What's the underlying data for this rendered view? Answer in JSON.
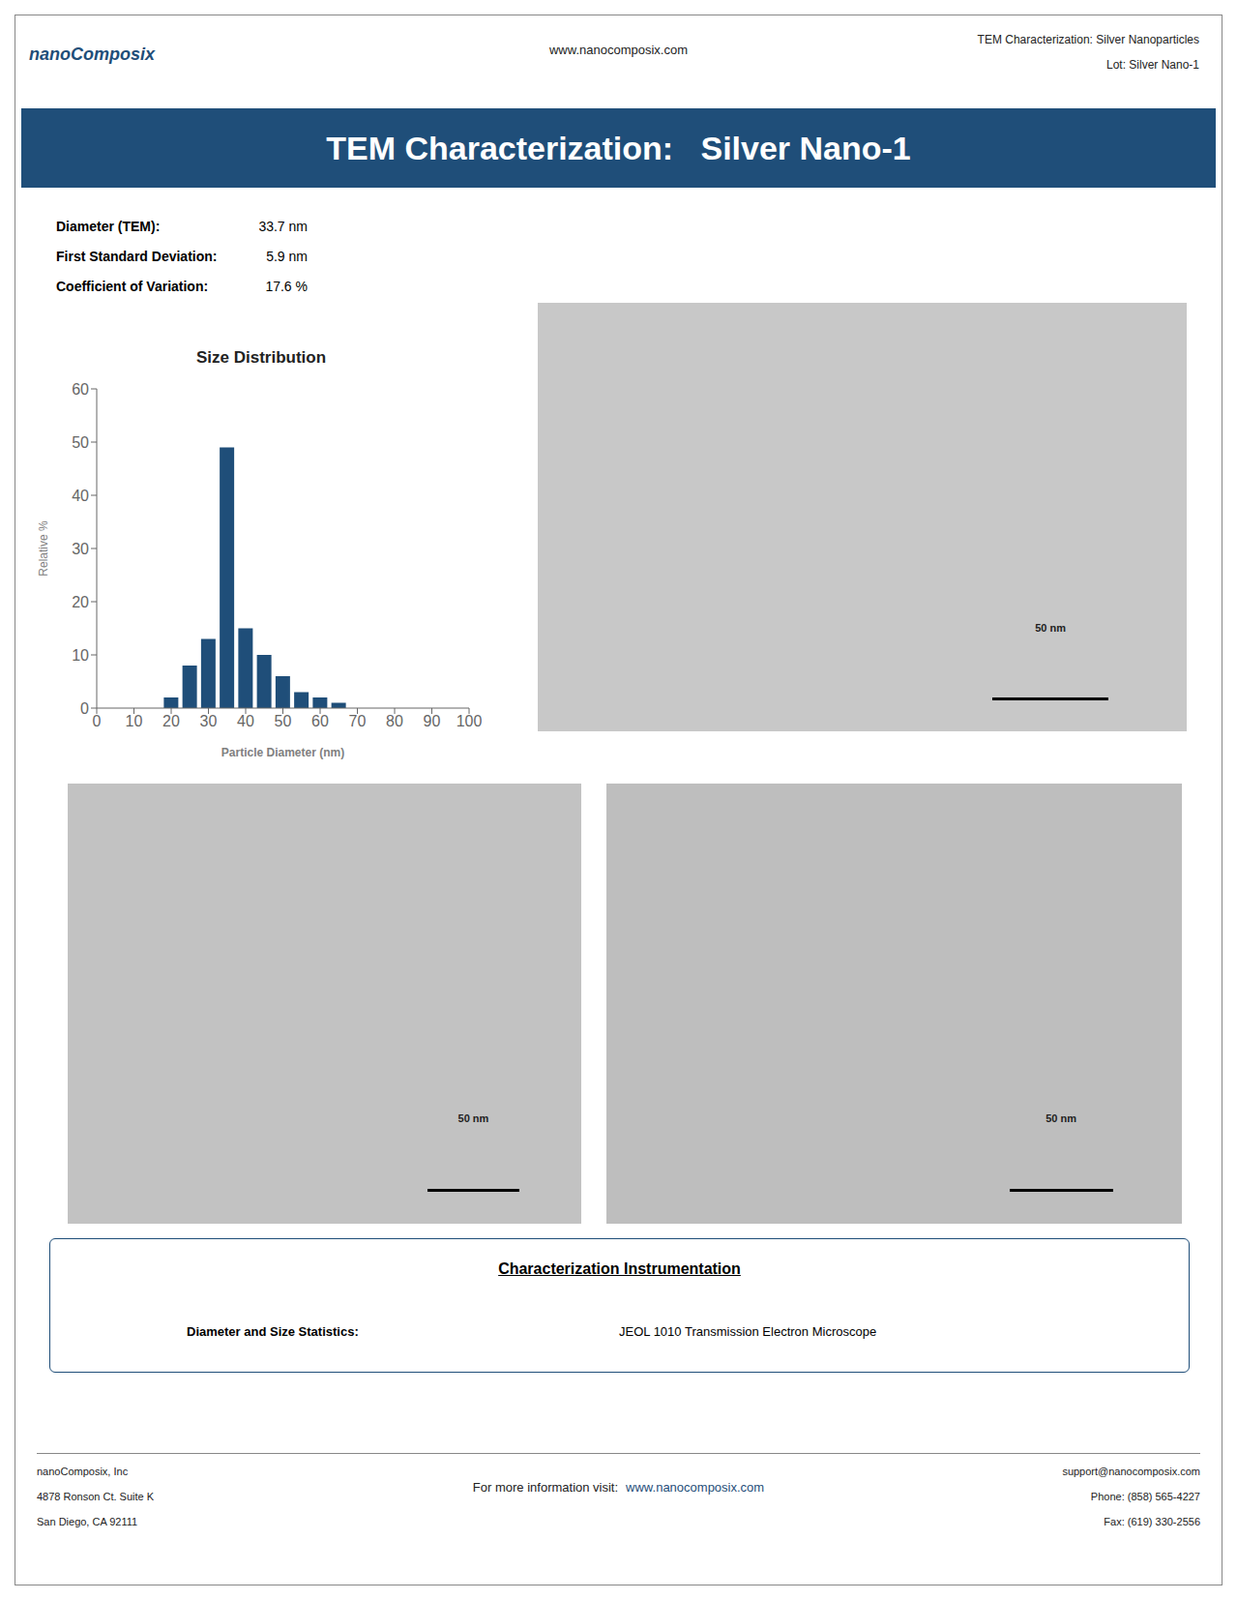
{
  "chart_data": {
    "type": "bar",
    "title": "Size Distribution",
    "x": [
      15,
      20,
      25,
      30,
      35,
      40,
      45,
      50,
      55,
      60,
      65
    ],
    "values": [
      0,
      2,
      8,
      13,
      49,
      15,
      10,
      6,
      3,
      2,
      1
    ],
    "color": "#1F4E79",
    "xlabel": "Particle Diameter (nm)",
    "ylabel": "Relative %",
    "xlim": [
      0,
      100
    ],
    "ylim": [
      0,
      60
    ],
    "xticks": [
      0,
      10,
      20,
      30,
      40,
      50,
      60,
      70,
      80,
      90,
      100
    ],
    "yticks": [
      0,
      10,
      20,
      30,
      40,
      50,
      60
    ],
    "grid": false,
    "legend": "none",
    "annotations": [
      "nano",
      "Composix",
      "www.nanocomposix.com",
      "TEM Characterization: Silver Nanoparticles",
      "Lot: Silver Nano-1",
      "TEM Characterization:   Silver Nano-1",
      "Diameter (TEM):",
      "33.7 nm",
      "First Standard Deviation:",
      "5.9 nm",
      "Coefficient of Variation:",
      "17.6 %",
      "50 nm",
      "50 nm",
      "50 nm",
      "Characterization Instrumentation",
      "Diameter and Size Statistics:",
      "JEOL 1010 Transmission Electron Microscope",
      "nanoComposix, Inc",
      "4878 Ronson Ct. Suite K",
      "San Diego, CA 92111",
      "For more information visit:",
      "www.nanocomposix.com",
      "support@nanocomposix.com",
      "Phone: (858) 565-4227",
      "Fax: (619) 330-2556"
    ]
  }
}
